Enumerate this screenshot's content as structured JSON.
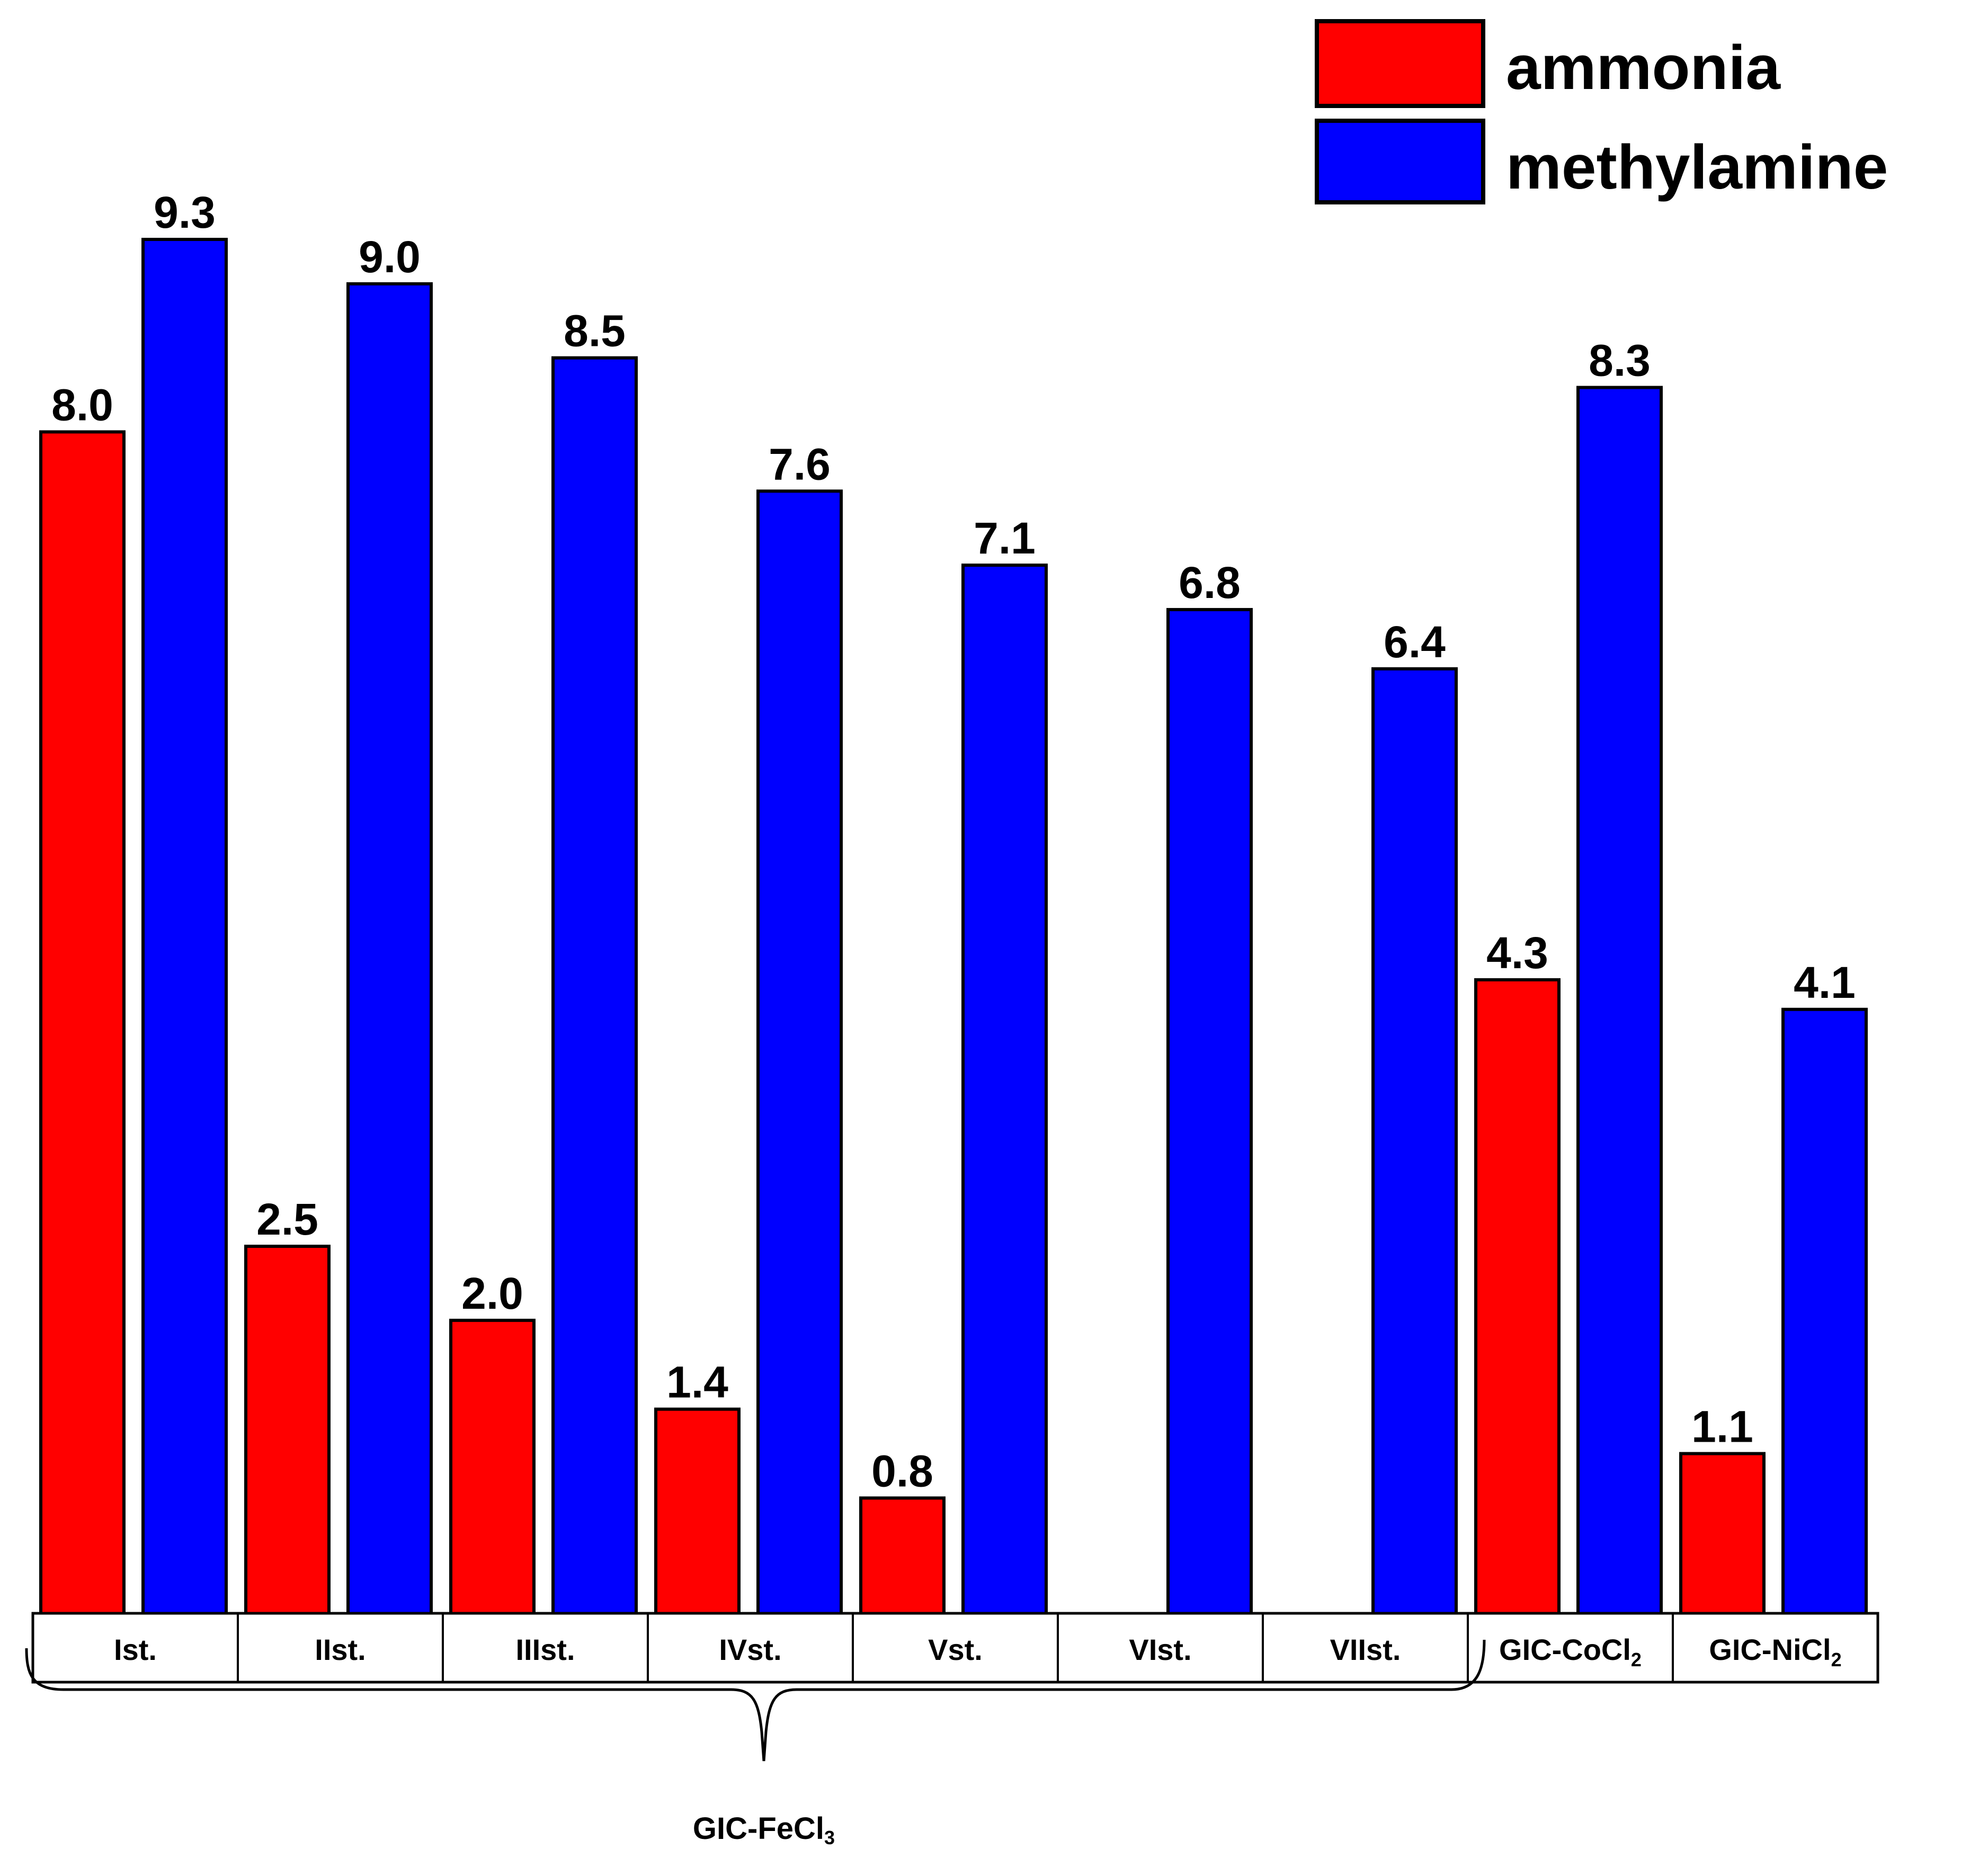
{
  "chart_data": {
    "type": "bar",
    "title": "",
    "xlabel": "",
    "ylabel": "",
    "ylim": [
      0,
      9.3
    ],
    "grid": false,
    "legend_position": "top-right",
    "categories": [
      {
        "label": "Ist.",
        "sub": ""
      },
      {
        "label": "IIst.",
        "sub": ""
      },
      {
        "label": "IIIst.",
        "sub": ""
      },
      {
        "label": "IVst.",
        "sub": ""
      },
      {
        "label": "Vst.",
        "sub": ""
      },
      {
        "label": "VIst.",
        "sub": ""
      },
      {
        "label": "VIIst.",
        "sub": ""
      },
      {
        "label": "GIC-CoCl",
        "sub": "2"
      },
      {
        "label": "GIC-NiCl",
        "sub": "2"
      }
    ],
    "series": [
      {
        "name": "ammonia",
        "color": "#ff0000",
        "values": [
          8.0,
          2.5,
          2.0,
          1.4,
          0.8,
          null,
          null,
          4.3,
          1.1
        ]
      },
      {
        "name": "methylamine",
        "color": "#0000ff",
        "values": [
          9.3,
          9.0,
          8.5,
          7.6,
          7.1,
          6.8,
          6.4,
          8.3,
          4.1
        ]
      }
    ],
    "group_annotation": {
      "label": "GIC-FeCl",
      "sub": "3"
    }
  }
}
